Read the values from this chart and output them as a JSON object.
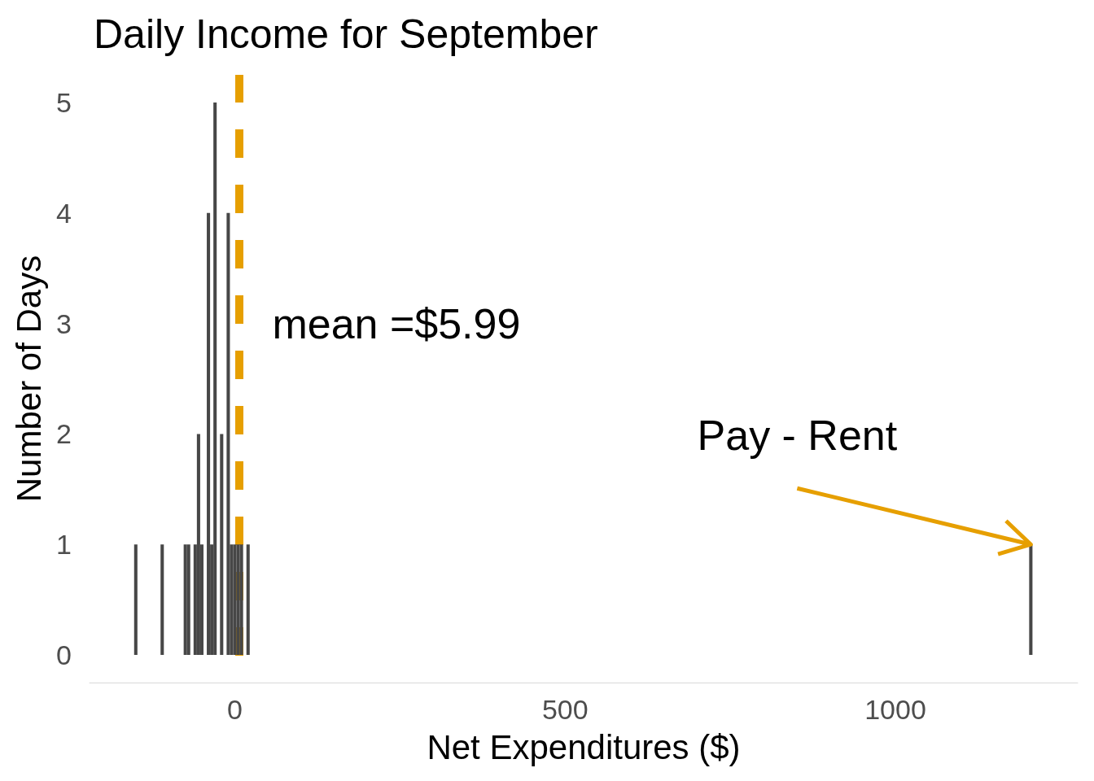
{
  "chart_data": {
    "type": "histogram",
    "title": "Daily Income for September",
    "xlabel": "Net Expenditures ($)",
    "ylabel": "Number of Days",
    "bins": [
      -152.5,
      -147.5,
      -112.5,
      -107.5,
      -77.5,
      -72.5,
      -67.5,
      -62.5,
      -57.5,
      -52.5,
      -47.5,
      -42.5,
      -37.5,
      -32.5,
      -27.5,
      -22.5,
      -17.5,
      -12.5,
      -7.5,
      -2.5,
      2.5,
      7.5,
      12.5,
      17.5,
      22.5,
      1202.5,
      1207.5
    ],
    "values": [
      1,
      0,
      1,
      0,
      1,
      1,
      0,
      1,
      2,
      1,
      0,
      4,
      1,
      5,
      0,
      2,
      0,
      4,
      1,
      1,
      1,
      1,
      0,
      1,
      0,
      1
    ],
    "color": "#474747",
    "xlim": [
      -220,
      1276
    ],
    "ylim": [
      -0.25,
      5.25
    ],
    "xticks": [
      0,
      500,
      1000
    ],
    "yticks": [
      0,
      1,
      2,
      3,
      4,
      5
    ],
    "ref_lines": [
      {
        "axis": "x",
        "value": 5.99,
        "label": "mean =$5.99",
        "color": "#e69f00",
        "line_style": "dashed"
      }
    ],
    "annotations": [
      {
        "text": "Pay - Rent",
        "x": 1205,
        "y": 1
      }
    ]
  }
}
